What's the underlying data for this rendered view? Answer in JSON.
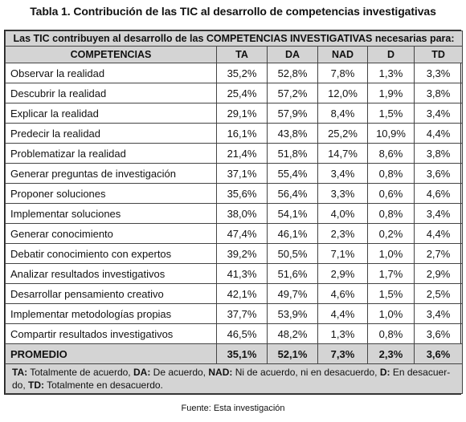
{
  "title": "Tabla 1. Contribución de las TIC al desarrollo de competencias investigativas",
  "table": {
    "heading": "Las TIC contribuyen al desarrollo de las COMPETENCIAS INVESTIGATIVAS necesarias para:",
    "columns": [
      "COMPETENCIAS",
      "TA",
      "DA",
      "NAD",
      "D",
      "TD"
    ],
    "rows": [
      {
        "label": "Observar la realidad",
        "TA": "35,2%",
        "DA": "52,8%",
        "NAD": "7,8%",
        "D": "1,3%",
        "TD": "3,3%"
      },
      {
        "label": "Descubrir la realidad",
        "TA": "25,4%",
        "DA": "57,2%",
        "NAD": "12,0%",
        "D": "1,9%",
        "TD": "3,8%"
      },
      {
        "label": "Explicar la realidad",
        "TA": "29,1%",
        "DA": "57,9%",
        "NAD": "8,4%",
        "D": "1,5%",
        "TD": "3,4%"
      },
      {
        "label": "Predecir la realidad",
        "TA": "16,1%",
        "DA": "43,8%",
        "NAD": "25,2%",
        "D": "10,9%",
        "TD": "4,4%"
      },
      {
        "label": "Problematizar la realidad",
        "TA": "21,4%",
        "DA": "51,8%",
        "NAD": "14,7%",
        "D": "8,6%",
        "TD": "3,8%"
      },
      {
        "label": "Generar preguntas de investigación",
        "TA": "37,1%",
        "DA": "55,4%",
        "NAD": "3,4%",
        "D": "0,8%",
        "TD": "3,6%"
      },
      {
        "label": "Proponer soluciones",
        "TA": "35,6%",
        "DA": "56,4%",
        "NAD": "3,3%",
        "D": "0,6%",
        "TD": "4,6%"
      },
      {
        "label": "Implementar soluciones",
        "TA": "38,0%",
        "DA": "54,1%",
        "NAD": "4,0%",
        "D": "0,8%",
        "TD": "3,4%"
      },
      {
        "label": "Generar conocimiento",
        "TA": "47,4%",
        "DA": "46,1%",
        "NAD": "2,3%",
        "D": "0,2%",
        "TD": "4,4%"
      },
      {
        "label": "Debatir conocimiento con expertos",
        "TA": "39,2%",
        "DA": "50,5%",
        "NAD": "7,1%",
        "D": "1,0%",
        "TD": "2,7%"
      },
      {
        "label": "Analizar resultados investigativos",
        "TA": "41,3%",
        "DA": "51,6%",
        "NAD": "2,9%",
        "D": "1,7%",
        "TD": "2,9%"
      },
      {
        "label": "Desarrollar pensamiento creativo",
        "TA": "42,1%",
        "DA": "49,7%",
        "NAD": "4,6%",
        "D": "1,5%",
        "TD": "2,5%"
      },
      {
        "label": "Implementar metodologías propias",
        "TA": "37,7%",
        "DA": "53,9%",
        "NAD": "4,4%",
        "D": "1,0%",
        "TD": "3,4%"
      },
      {
        "label": "Compartir resultados investigativos",
        "TA": "46,5%",
        "DA": "48,2%",
        "NAD": "1,3%",
        "D": "0,8%",
        "TD": "3,6%"
      }
    ],
    "average": {
      "label": "PROMEDIO",
      "TA": "35,1%",
      "DA": "52,1%",
      "NAD": "7,3%",
      "D": "2,3%",
      "TD": "3,6%"
    },
    "legend": [
      {
        "abbr": "TA:",
        "text": " Totalmente de acuerdo, "
      },
      {
        "abbr": "DA:",
        "text": " De acuerdo, "
      },
      {
        "abbr": "NAD:",
        "text": " Ni de acuerdo, ni en desacuerdo, "
      },
      {
        "abbr": "D:",
        "text": " En desacuer-do, "
      },
      {
        "abbr": "TD:",
        "text": " Totalmente en desacuerdo."
      }
    ]
  },
  "source": "Fuente: Esta investigación"
}
